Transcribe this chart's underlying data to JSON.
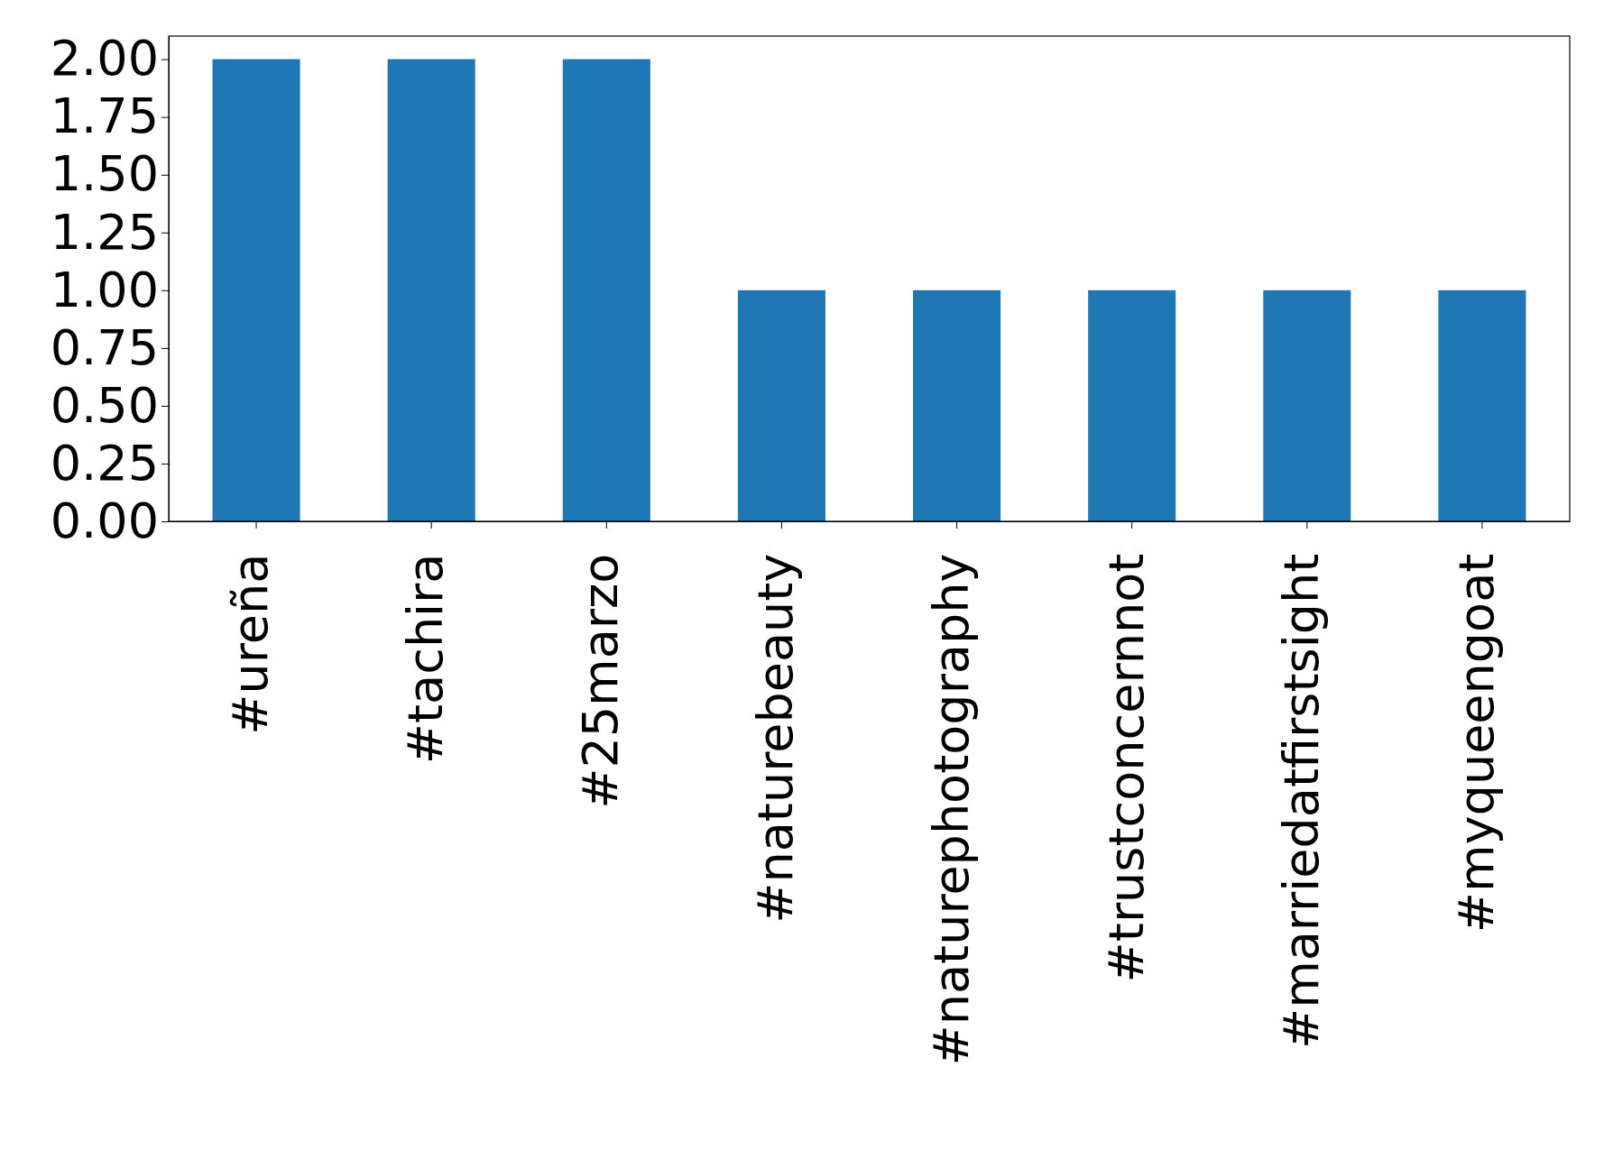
{
  "chart_data": {
    "type": "bar",
    "categories": [
      "#ureña",
      "#tachira",
      "#25marzo",
      "#naturebeauty",
      "#naturephotography",
      "#trustconcernnot",
      "#marriedatfirstsight",
      "#myqueengoat"
    ],
    "values": [
      2,
      2,
      2,
      1,
      1,
      1,
      1,
      1
    ],
    "color": "#1f77b4",
    "ylim": [
      0,
      2.1
    ],
    "yticks": [
      {
        "value": 0,
        "label": "0.00"
      },
      {
        "value": 0.25,
        "label": "0.25"
      },
      {
        "value": 0.5,
        "label": "0.50"
      },
      {
        "value": 0.75,
        "label": "0.75"
      },
      {
        "value": 1,
        "label": "1.00"
      },
      {
        "value": 1.25,
        "label": "1.25"
      },
      {
        "value": 1.5,
        "label": "1.50"
      },
      {
        "value": 1.75,
        "label": "1.75"
      },
      {
        "value": 2,
        "label": "2.00"
      }
    ]
  }
}
